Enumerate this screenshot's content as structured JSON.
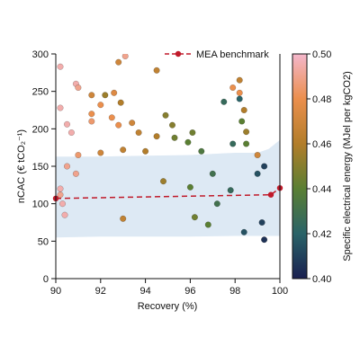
{
  "chart_data": {
    "type": "scatter",
    "xlabel": "Recovery (%)",
    "ylabel": "nCAC (€ tCO₂⁻¹)",
    "xlim": [
      90,
      100
    ],
    "ylim": [
      0,
      300
    ],
    "xticks": [
      90,
      92,
      94,
      96,
      98,
      100
    ],
    "yticks": [
      0,
      50,
      100,
      150,
      200,
      250,
      300
    ],
    "legend": {
      "label": "MEA benchmark",
      "placement": "top-right"
    },
    "colorbar": {
      "label": "Specific electrical energy (MJel per kgCO2)",
      "range": [
        0.4,
        0.5
      ],
      "ticks": [
        0.4,
        0.42,
        0.44,
        0.46,
        0.48,
        0.5
      ],
      "tick_labels": [
        "0.40",
        "0.42",
        "0.44",
        "0.46",
        "0.48",
        "0.50"
      ],
      "colors": [
        "#1a2050",
        "#2a6368",
        "#5a7f33",
        "#b27d2a",
        "#eb8f4d",
        "#f4b7cc"
      ]
    },
    "band": {
      "x": [
        90,
        92,
        94,
        96,
        98,
        99,
        99.5,
        100
      ],
      "lower": [
        55,
        56,
        56,
        56,
        57,
        57,
        57,
        57
      ],
      "upper": [
        163,
        163,
        164,
        165,
        168,
        168,
        173,
        185
      ],
      "color": "#dde9f4"
    },
    "benchmark": {
      "x": [
        90,
        99.6,
        100
      ],
      "y": [
        107,
        112,
        121
      ],
      "color": "#c01a2a"
    },
    "series": [
      {
        "values": [
          {
            "x": 90.2,
            "y": 283,
            "c": 0.495
          },
          {
            "x": 90.9,
            "y": 260,
            "c": 0.495
          },
          {
            "x": 91.0,
            "y": 255,
            "c": 0.49
          },
          {
            "x": 90.2,
            "y": 228,
            "c": 0.495
          },
          {
            "x": 90.5,
            "y": 206,
            "c": 0.495
          },
          {
            "x": 90.7,
            "y": 195,
            "c": 0.495
          },
          {
            "x": 91.6,
            "y": 245,
            "c": 0.47
          },
          {
            "x": 91.6,
            "y": 220,
            "c": 0.48
          },
          {
            "x": 91.6,
            "y": 210,
            "c": 0.485
          },
          {
            "x": 92.8,
            "y": 289,
            "c": 0.47
          },
          {
            "x": 93.1,
            "y": 297,
            "c": 0.49
          },
          {
            "x": 92.2,
            "y": 245,
            "c": 0.455
          },
          {
            "x": 92.6,
            "y": 248,
            "c": 0.475
          },
          {
            "x": 92.0,
            "y": 232,
            "c": 0.48
          },
          {
            "x": 92.9,
            "y": 235,
            "c": 0.46
          },
          {
            "x": 92.5,
            "y": 215,
            "c": 0.48
          },
          {
            "x": 92.8,
            "y": 205,
            "c": 0.48
          },
          {
            "x": 93.4,
            "y": 208,
            "c": 0.47
          },
          {
            "x": 94.5,
            "y": 278,
            "c": 0.465
          },
          {
            "x": 93.7,
            "y": 195,
            "c": 0.465
          },
          {
            "x": 94.9,
            "y": 218,
            "c": 0.45
          },
          {
            "x": 94.5,
            "y": 190,
            "c": 0.46
          },
          {
            "x": 95.2,
            "y": 205,
            "c": 0.45
          },
          {
            "x": 95.3,
            "y": 188,
            "c": 0.445
          },
          {
            "x": 95.9,
            "y": 182,
            "c": 0.44
          },
          {
            "x": 96.1,
            "y": 195,
            "c": 0.445
          },
          {
            "x": 96.5,
            "y": 170,
            "c": 0.435
          },
          {
            "x": 97.5,
            "y": 236,
            "c": 0.425
          },
          {
            "x": 97.9,
            "y": 255,
            "c": 0.48
          },
          {
            "x": 98.2,
            "y": 265,
            "c": 0.465
          },
          {
            "x": 98.2,
            "y": 248,
            "c": 0.48
          },
          {
            "x": 98.2,
            "y": 240,
            "c": 0.42
          },
          {
            "x": 98.4,
            "y": 225,
            "c": 0.46
          },
          {
            "x": 98.3,
            "y": 210,
            "c": 0.44
          },
          {
            "x": 98.5,
            "y": 196,
            "c": 0.455
          },
          {
            "x": 98.5,
            "y": 180,
            "c": 0.44
          },
          {
            "x": 97.9,
            "y": 180,
            "c": 0.425
          },
          {
            "x": 97.0,
            "y": 140,
            "c": 0.43
          },
          {
            "x": 99.0,
            "y": 165,
            "c": 0.47
          },
          {
            "x": 99.3,
            "y": 150,
            "c": 0.41
          },
          {
            "x": 99.0,
            "y": 140,
            "c": 0.415
          },
          {
            "x": 94.0,
            "y": 170,
            "c": 0.46
          },
          {
            "x": 93.0,
            "y": 172,
            "c": 0.465
          },
          {
            "x": 92.0,
            "y": 168,
            "c": 0.47
          },
          {
            "x": 91.0,
            "y": 165,
            "c": 0.485
          },
          {
            "x": 90.5,
            "y": 150,
            "c": 0.49
          },
          {
            "x": 90.9,
            "y": 140,
            "c": 0.49
          },
          {
            "x": 90.2,
            "y": 120,
            "c": 0.495
          },
          {
            "x": 90.3,
            "y": 100,
            "c": 0.495
          },
          {
            "x": 90.4,
            "y": 85,
            "c": 0.495
          },
          {
            "x": 90.2,
            "y": 112,
            "c": 0.49
          },
          {
            "x": 93.0,
            "y": 80,
            "c": 0.465
          },
          {
            "x": 96.2,
            "y": 82,
            "c": 0.445
          },
          {
            "x": 96.8,
            "y": 72,
            "c": 0.44
          },
          {
            "x": 97.2,
            "y": 100,
            "c": 0.43
          },
          {
            "x": 98.4,
            "y": 62,
            "c": 0.415
          },
          {
            "x": 99.3,
            "y": 52,
            "c": 0.405
          },
          {
            "x": 99.2,
            "y": 75,
            "c": 0.41
          },
          {
            "x": 97.8,
            "y": 118,
            "c": 0.425
          },
          {
            "x": 96.0,
            "y": 122,
            "c": 0.44
          },
          {
            "x": 94.8,
            "y": 130,
            "c": 0.455
          }
        ]
      }
    ]
  }
}
